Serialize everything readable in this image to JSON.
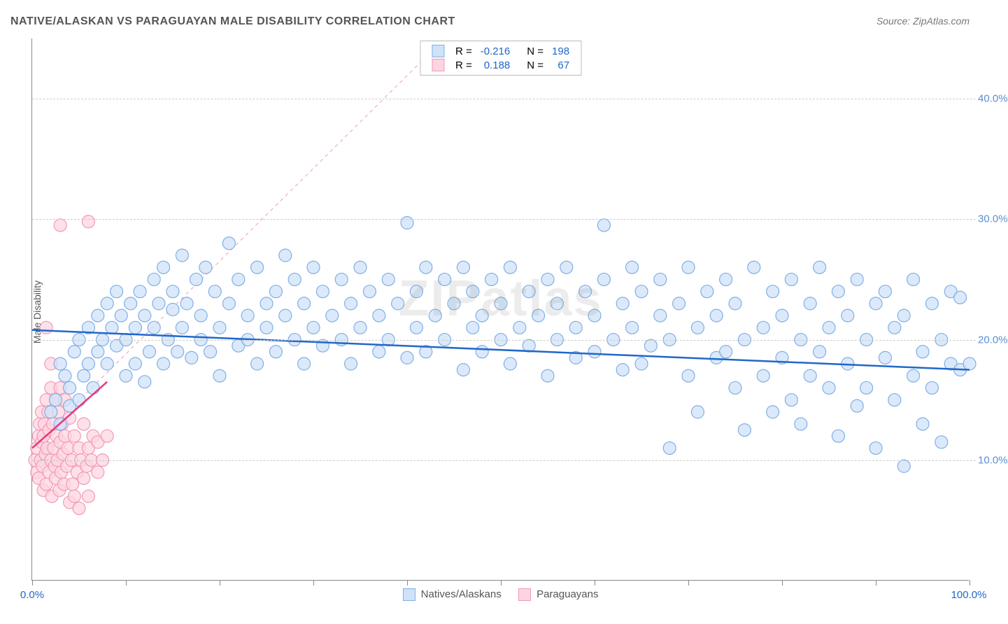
{
  "title": "NATIVE/ALASKAN VS PARAGUAYAN MALE DISABILITY CORRELATION CHART",
  "source": "Source: ZipAtlas.com",
  "ylabel": "Male Disability",
  "watermark": "ZIPatlas",
  "chart": {
    "type": "scatter",
    "xlim": [
      0,
      100
    ],
    "ylim": [
      0,
      45
    ],
    "yticks": [
      10,
      20,
      30,
      40
    ],
    "ytick_labels": [
      "10.0%",
      "20.0%",
      "30.0%",
      "40.0%"
    ],
    "xtick_positions": [
      0,
      10,
      20,
      30,
      40,
      50,
      60,
      70,
      80,
      90,
      100
    ],
    "xlab_left": "0.0%",
    "xlab_right": "100.0%",
    "grid_color": "#cccccc",
    "axis_color": "#888888",
    "background_color": "#ffffff",
    "marker_radius": 9,
    "marker_stroke_width": 1.2,
    "trend_line_width": 2.5,
    "series": [
      {
        "name": "Natives/Alaskans",
        "fill": "#cfe2f8",
        "stroke": "#7fb0e6",
        "trend_color": "#2167c9",
        "R": "-0.216",
        "N": "198",
        "trend": {
          "x1": 0,
          "y1": 20.8,
          "x2": 100,
          "y2": 17.5
        },
        "points": [
          [
            2,
            14
          ],
          [
            2.5,
            15
          ],
          [
            3,
            13
          ],
          [
            3,
            18
          ],
          [
            3.5,
            17
          ],
          [
            4,
            14.5
          ],
          [
            4,
            16
          ],
          [
            4.5,
            19
          ],
          [
            5,
            15
          ],
          [
            5,
            20
          ],
          [
            5.5,
            17
          ],
          [
            6,
            18
          ],
          [
            6,
            21
          ],
          [
            6.5,
            16
          ],
          [
            7,
            19
          ],
          [
            7,
            22
          ],
          [
            7.5,
            20
          ],
          [
            8,
            18
          ],
          [
            8,
            23
          ],
          [
            8.5,
            21
          ],
          [
            9,
            19.5
          ],
          [
            9,
            24
          ],
          [
            9.5,
            22
          ],
          [
            10,
            17
          ],
          [
            10,
            20
          ],
          [
            10.5,
            23
          ],
          [
            11,
            18
          ],
          [
            11,
            21
          ],
          [
            11.5,
            24
          ],
          [
            12,
            16.5
          ],
          [
            12,
            22
          ],
          [
            12.5,
            19
          ],
          [
            13,
            25
          ],
          [
            13,
            21
          ],
          [
            13.5,
            23
          ],
          [
            14,
            18
          ],
          [
            14,
            26
          ],
          [
            14.5,
            20
          ],
          [
            15,
            22.5
          ],
          [
            15,
            24
          ],
          [
            15.5,
            19
          ],
          [
            16,
            27
          ],
          [
            16,
            21
          ],
          [
            16.5,
            23
          ],
          [
            17,
            18.5
          ],
          [
            17.5,
            25
          ],
          [
            18,
            20
          ],
          [
            18,
            22
          ],
          [
            18.5,
            26
          ],
          [
            19,
            19
          ],
          [
            19.5,
            24
          ],
          [
            20,
            21
          ],
          [
            20,
            17
          ],
          [
            21,
            28
          ],
          [
            21,
            23
          ],
          [
            22,
            19.5
          ],
          [
            22,
            25
          ],
          [
            23,
            20
          ],
          [
            23,
            22
          ],
          [
            24,
            26
          ],
          [
            24,
            18
          ],
          [
            25,
            23
          ],
          [
            25,
            21
          ],
          [
            26,
            24
          ],
          [
            26,
            19
          ],
          [
            27,
            27
          ],
          [
            27,
            22
          ],
          [
            28,
            20
          ],
          [
            28,
            25
          ],
          [
            29,
            23
          ],
          [
            29,
            18
          ],
          [
            30,
            26
          ],
          [
            30,
            21
          ],
          [
            31,
            24
          ],
          [
            31,
            19.5
          ],
          [
            32,
            22
          ],
          [
            33,
            25
          ],
          [
            33,
            20
          ],
          [
            34,
            23
          ],
          [
            34,
            18
          ],
          [
            35,
            26
          ],
          [
            35,
            21
          ],
          [
            36,
            24
          ],
          [
            37,
            19
          ],
          [
            37,
            22
          ],
          [
            38,
            25
          ],
          [
            38,
            20
          ],
          [
            39,
            23
          ],
          [
            40,
            18.5
          ],
          [
            40,
            29.7
          ],
          [
            41,
            21
          ],
          [
            41,
            24
          ],
          [
            42,
            26
          ],
          [
            42,
            19
          ],
          [
            43,
            22
          ],
          [
            44,
            25
          ],
          [
            44,
            20
          ],
          [
            45,
            23
          ],
          [
            46,
            17.5
          ],
          [
            46,
            26
          ],
          [
            47,
            21
          ],
          [
            47,
            24
          ],
          [
            48,
            19
          ],
          [
            48,
            22
          ],
          [
            49,
            25
          ],
          [
            50,
            20
          ],
          [
            50,
            23
          ],
          [
            51,
            18
          ],
          [
            51,
            26
          ],
          [
            52,
            21
          ],
          [
            53,
            24
          ],
          [
            53,
            19.5
          ],
          [
            54,
            22
          ],
          [
            55,
            25
          ],
          [
            55,
            17
          ],
          [
            56,
            20
          ],
          [
            56,
            23
          ],
          [
            57,
            26
          ],
          [
            58,
            18.5
          ],
          [
            58,
            21
          ],
          [
            59,
            24
          ],
          [
            60,
            19
          ],
          [
            60,
            22
          ],
          [
            61,
            25
          ],
          [
            61,
            29.5
          ],
          [
            62,
            20
          ],
          [
            63,
            23
          ],
          [
            63,
            17.5
          ],
          [
            64,
            26
          ],
          [
            64,
            21
          ],
          [
            65,
            18
          ],
          [
            65,
            24
          ],
          [
            66,
            19.5
          ],
          [
            67,
            22
          ],
          [
            67,
            25
          ],
          [
            68,
            20
          ],
          [
            68,
            11
          ],
          [
            69,
            23
          ],
          [
            70,
            17
          ],
          [
            70,
            26
          ],
          [
            71,
            21
          ],
          [
            71,
            14
          ],
          [
            72,
            24
          ],
          [
            73,
            18.5
          ],
          [
            73,
            22
          ],
          [
            74,
            25
          ],
          [
            74,
            19
          ],
          [
            75,
            16
          ],
          [
            75,
            23
          ],
          [
            76,
            20
          ],
          [
            76,
            12.5
          ],
          [
            77,
            26
          ],
          [
            78,
            21
          ],
          [
            78,
            17
          ],
          [
            79,
            24
          ],
          [
            79,
            14
          ],
          [
            80,
            22
          ],
          [
            80,
            18.5
          ],
          [
            81,
            25
          ],
          [
            81,
            15
          ],
          [
            82,
            20
          ],
          [
            82,
            13
          ],
          [
            83,
            23
          ],
          [
            83,
            17
          ],
          [
            84,
            19
          ],
          [
            84,
            26
          ],
          [
            85,
            16
          ],
          [
            85,
            21
          ],
          [
            86,
            24
          ],
          [
            86,
            12
          ],
          [
            87,
            18
          ],
          [
            87,
            22
          ],
          [
            88,
            14.5
          ],
          [
            88,
            25
          ],
          [
            89,
            20
          ],
          [
            89,
            16
          ],
          [
            90,
            23
          ],
          [
            90,
            11
          ],
          [
            91,
            18.5
          ],
          [
            91,
            24
          ],
          [
            92,
            15
          ],
          [
            92,
            21
          ],
          [
            93,
            22
          ],
          [
            93,
            9.5
          ],
          [
            94,
            17
          ],
          [
            94,
            25
          ],
          [
            95,
            19
          ],
          [
            95,
            13
          ],
          [
            96,
            23
          ],
          [
            96,
            16
          ],
          [
            97,
            20
          ],
          [
            97,
            11.5
          ],
          [
            98,
            18
          ],
          [
            98,
            24
          ],
          [
            99,
            17.5
          ],
          [
            99,
            23.5
          ],
          [
            100,
            18
          ]
        ]
      },
      {
        "name": "Paraguayans",
        "fill": "#fcd5e0",
        "stroke": "#f29ab5",
        "trend_color": "#e6397a",
        "R": "0.188",
        "N": "67",
        "trend": {
          "x1": 0,
          "y1": 11,
          "x2": 8,
          "y2": 16.5
        },
        "diag": {
          "x1": 0.5,
          "y1": 11.5,
          "x2": 44,
          "y2": 45
        },
        "points": [
          [
            0.3,
            10
          ],
          [
            0.5,
            11
          ],
          [
            0.5,
            9
          ],
          [
            0.7,
            12
          ],
          [
            0.7,
            8.5
          ],
          [
            0.8,
            13
          ],
          [
            0.9,
            10
          ],
          [
            1,
            11.5
          ],
          [
            1,
            14
          ],
          [
            1.1,
            9.5
          ],
          [
            1.2,
            12
          ],
          [
            1.2,
            7.5
          ],
          [
            1.3,
            13
          ],
          [
            1.4,
            10.5
          ],
          [
            1.5,
            15
          ],
          [
            1.5,
            8
          ],
          [
            1.6,
            11
          ],
          [
            1.7,
            14
          ],
          [
            1.8,
            9
          ],
          [
            1.8,
            12.5
          ],
          [
            2,
            16
          ],
          [
            2,
            10
          ],
          [
            2.1,
            7
          ],
          [
            2.2,
            13
          ],
          [
            2.3,
            11
          ],
          [
            2.4,
            9.5
          ],
          [
            2.5,
            15
          ],
          [
            2.5,
            8.5
          ],
          [
            2.6,
            12
          ],
          [
            2.7,
            10
          ],
          [
            2.8,
            14
          ],
          [
            2.9,
            7.5
          ],
          [
            3,
            11.5
          ],
          [
            3,
            16
          ],
          [
            3.1,
            9
          ],
          [
            3.2,
            13
          ],
          [
            3.3,
            10.5
          ],
          [
            3.4,
            8
          ],
          [
            3.5,
            12
          ],
          [
            3.5,
            15
          ],
          [
            3.7,
            9.5
          ],
          [
            3.8,
            11
          ],
          [
            4,
            6.5
          ],
          [
            4,
            13.5
          ],
          [
            4.2,
            10
          ],
          [
            4.3,
            8
          ],
          [
            4.5,
            12
          ],
          [
            4.5,
            7
          ],
          [
            4.8,
            9
          ],
          [
            5,
            11
          ],
          [
            5,
            6
          ],
          [
            5.2,
            10
          ],
          [
            5.5,
            8.5
          ],
          [
            5.5,
            13
          ],
          [
            5.8,
            9.5
          ],
          [
            6,
            11
          ],
          [
            6,
            7
          ],
          [
            6.3,
            10
          ],
          [
            6.5,
            12
          ],
          [
            7,
            9
          ],
          [
            7,
            11.5
          ],
          [
            7.5,
            10
          ],
          [
            8,
            12
          ],
          [
            3,
            29.5
          ],
          [
            6,
            29.8
          ],
          [
            1.5,
            21
          ],
          [
            2,
            18
          ]
        ]
      }
    ]
  },
  "legend_stats": {
    "R_label": "R =",
    "N_label": "N ="
  },
  "bottom_legend": {
    "items": [
      "Natives/Alaskans",
      "Paraguayans"
    ]
  },
  "colors": {
    "title": "#555555",
    "stat_value": "#2167c9",
    "xlab": "#2167c9",
    "ylab": "#5a8fd6"
  }
}
